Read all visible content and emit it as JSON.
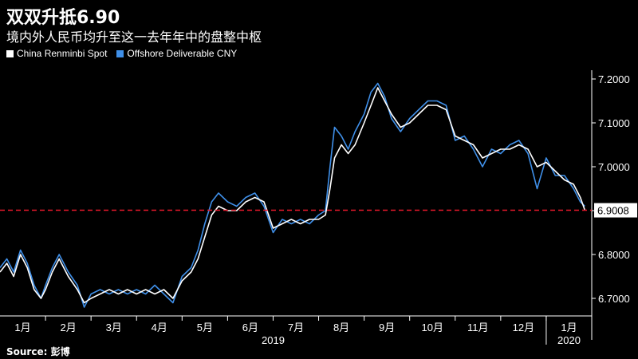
{
  "header": {
    "title": "双双升抵6.90",
    "subtitle": "境内外人民币均升至这一去年年中的盘整中枢"
  },
  "source": "Source: 彭博",
  "colors": {
    "spot": "#ffffff",
    "offshore": "#3f8fe8",
    "reference_line": "#e8192c",
    "background": "#000000"
  },
  "chart_data": {
    "type": "line",
    "title": "双双升抵6.90",
    "subtitle": "境内外人民币均升至这一去年年中的盘整中枢",
    "x_axis": {
      "month_labels": [
        "1月",
        "2月",
        "3月",
        "4月",
        "5月",
        "6月",
        "7月",
        "8月",
        "9月",
        "10月",
        "11月",
        "12月",
        "1月"
      ],
      "year_labels": [
        "2019",
        "2020"
      ]
    },
    "y_axis": {
      "ylim": [
        6.66,
        7.22
      ],
      "tick_labels": [
        "7.2000",
        "7.1000",
        "7.0000",
        "6.9000",
        "6.8000",
        "6.7000"
      ],
      "tick_values": [
        7.2,
        7.1,
        7.0,
        6.9,
        6.8,
        6.7
      ],
      "position": "right",
      "grid": false
    },
    "legend": {
      "placement": "top-left"
    },
    "reference_line": {
      "value": 6.9008,
      "label": "6.9008",
      "style": "dashed"
    },
    "x_unit": "month index (0 = start of Jan 2019)",
    "series": [
      {
        "name": "China Renminbi Spot",
        "color": "#ffffff",
        "points": [
          [
            0,
            6.76
          ],
          [
            0.15,
            6.78
          ],
          [
            0.3,
            6.75
          ],
          [
            0.45,
            6.8
          ],
          [
            0.6,
            6.77
          ],
          [
            0.75,
            6.72
          ],
          [
            0.9,
            6.7
          ],
          [
            1,
            6.72
          ],
          [
            1.15,
            6.76
          ],
          [
            1.3,
            6.79
          ],
          [
            1.5,
            6.75
          ],
          [
            1.7,
            6.72
          ],
          [
            1.85,
            6.69
          ],
          [
            2,
            6.7
          ],
          [
            2.2,
            6.71
          ],
          [
            2.4,
            6.72
          ],
          [
            2.6,
            6.71
          ],
          [
            2.8,
            6.72
          ],
          [
            3,
            6.71
          ],
          [
            3.2,
            6.72
          ],
          [
            3.4,
            6.71
          ],
          [
            3.6,
            6.72
          ],
          [
            3.8,
            6.7
          ],
          [
            4,
            6.74
          ],
          [
            4.2,
            6.76
          ],
          [
            4.35,
            6.79
          ],
          [
            4.5,
            6.84
          ],
          [
            4.65,
            6.89
          ],
          [
            4.8,
            6.91
          ],
          [
            5,
            6.9
          ],
          [
            5.2,
            6.9
          ],
          [
            5.4,
            6.92
          ],
          [
            5.6,
            6.93
          ],
          [
            5.8,
            6.92
          ],
          [
            6,
            6.86
          ],
          [
            6.2,
            6.87
          ],
          [
            6.4,
            6.88
          ],
          [
            6.6,
            6.87
          ],
          [
            6.8,
            6.88
          ],
          [
            7,
            6.88
          ],
          [
            7.15,
            6.89
          ],
          [
            7.25,
            6.95
          ],
          [
            7.35,
            7.02
          ],
          [
            7.5,
            7.05
          ],
          [
            7.65,
            7.03
          ],
          [
            7.8,
            7.05
          ],
          [
            8,
            7.1
          ],
          [
            8.15,
            7.14
          ],
          [
            8.3,
            7.18
          ],
          [
            8.45,
            7.15
          ],
          [
            8.6,
            7.12
          ],
          [
            8.8,
            7.09
          ],
          [
            9,
            7.1
          ],
          [
            9.2,
            7.12
          ],
          [
            9.4,
            7.14
          ],
          [
            9.6,
            7.14
          ],
          [
            9.8,
            7.13
          ],
          [
            10,
            7.07
          ],
          [
            10.2,
            7.06
          ],
          [
            10.4,
            7.05
          ],
          [
            10.6,
            7.02
          ],
          [
            10.8,
            7.03
          ],
          [
            11,
            7.04
          ],
          [
            11.2,
            7.04
          ],
          [
            11.4,
            7.05
          ],
          [
            11.6,
            7.04
          ],
          [
            11.8,
            7.0
          ],
          [
            12,
            7.01
          ],
          [
            12.2,
            6.99
          ],
          [
            12.4,
            6.97
          ],
          [
            12.6,
            6.96
          ],
          [
            12.75,
            6.93
          ],
          [
            12.85,
            6.9008
          ]
        ]
      },
      {
        "name": "Offshore Deliverable CNY",
        "color": "#3f8fe8",
        "points": [
          [
            0,
            6.77
          ],
          [
            0.15,
            6.79
          ],
          [
            0.3,
            6.76
          ],
          [
            0.45,
            6.81
          ],
          [
            0.6,
            6.78
          ],
          [
            0.75,
            6.73
          ],
          [
            0.9,
            6.7
          ],
          [
            1,
            6.73
          ],
          [
            1.15,
            6.77
          ],
          [
            1.3,
            6.8
          ],
          [
            1.5,
            6.76
          ],
          [
            1.7,
            6.73
          ],
          [
            1.85,
            6.68
          ],
          [
            2,
            6.71
          ],
          [
            2.2,
            6.72
          ],
          [
            2.4,
            6.71
          ],
          [
            2.6,
            6.72
          ],
          [
            2.8,
            6.71
          ],
          [
            3,
            6.72
          ],
          [
            3.2,
            6.71
          ],
          [
            3.4,
            6.73
          ],
          [
            3.6,
            6.71
          ],
          [
            3.8,
            6.69
          ],
          [
            4,
            6.75
          ],
          [
            4.2,
            6.77
          ],
          [
            4.35,
            6.81
          ],
          [
            4.5,
            6.87
          ],
          [
            4.65,
            6.92
          ],
          [
            4.8,
            6.94
          ],
          [
            5,
            6.92
          ],
          [
            5.2,
            6.91
          ],
          [
            5.4,
            6.93
          ],
          [
            5.6,
            6.94
          ],
          [
            5.8,
            6.91
          ],
          [
            6,
            6.85
          ],
          [
            6.2,
            6.88
          ],
          [
            6.4,
            6.87
          ],
          [
            6.6,
            6.88
          ],
          [
            6.8,
            6.87
          ],
          [
            7,
            6.89
          ],
          [
            7.15,
            6.9
          ],
          [
            7.25,
            7.0
          ],
          [
            7.35,
            7.09
          ],
          [
            7.5,
            7.07
          ],
          [
            7.65,
            7.04
          ],
          [
            7.8,
            7.08
          ],
          [
            8,
            7.12
          ],
          [
            8.15,
            7.17
          ],
          [
            8.3,
            7.19
          ],
          [
            8.45,
            7.16
          ],
          [
            8.6,
            7.11
          ],
          [
            8.8,
            7.08
          ],
          [
            9,
            7.11
          ],
          [
            9.2,
            7.13
          ],
          [
            9.4,
            7.15
          ],
          [
            9.6,
            7.15
          ],
          [
            9.8,
            7.14
          ],
          [
            10,
            7.06
          ],
          [
            10.2,
            7.07
          ],
          [
            10.4,
            7.04
          ],
          [
            10.6,
            7.0
          ],
          [
            10.8,
            7.04
          ],
          [
            11,
            7.03
          ],
          [
            11.2,
            7.05
          ],
          [
            11.4,
            7.06
          ],
          [
            11.6,
            7.03
          ],
          [
            11.8,
            6.95
          ],
          [
            12,
            7.02
          ],
          [
            12.2,
            6.98
          ],
          [
            12.4,
            6.98
          ],
          [
            12.6,
            6.95
          ],
          [
            12.75,
            6.92
          ],
          [
            12.85,
            6.91
          ]
        ]
      }
    ]
  }
}
